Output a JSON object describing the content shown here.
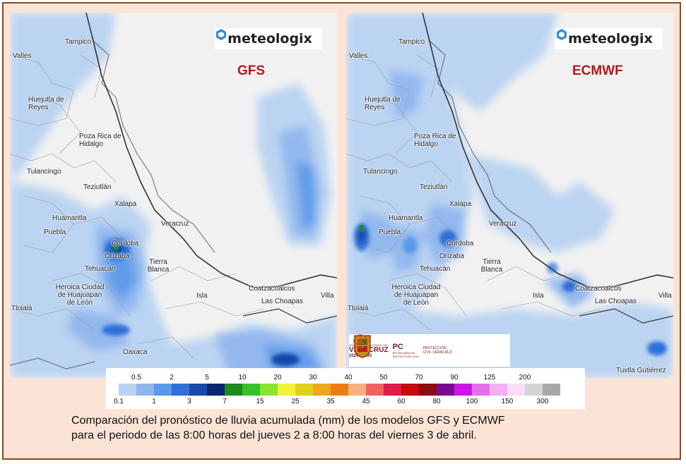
{
  "maps": [
    {
      "model": "GFS",
      "logo": "meteologix",
      "cities": [
        {
          "name": "Tampico"
        },
        {
          "name": "Valles"
        },
        {
          "name": "Huejutla de Reyes"
        },
        {
          "name": "Poza Rica de Hidalgo"
        },
        {
          "name": "Tulancingo"
        },
        {
          "name": "Teziutlán"
        },
        {
          "name": "Xalapa"
        },
        {
          "name": "Huamantla"
        },
        {
          "name": "Puebla"
        },
        {
          "name": "Veracruz"
        },
        {
          "name": "Córdoba"
        },
        {
          "name": "Orizaba"
        },
        {
          "name": "Tehuacán"
        },
        {
          "name": "Tierra Blanca"
        },
        {
          "name": "Heroica Ciudad de Huajuapan de León"
        },
        {
          "name": "Isla"
        },
        {
          "name": "Coatzacoalcos"
        },
        {
          "name": "Las Choapas"
        },
        {
          "name": "Tlolalá"
        },
        {
          "name": "Oaxaca"
        },
        {
          "name": "Villa"
        }
      ]
    },
    {
      "model": "ECMWF",
      "logo": "meteologix",
      "cities": [
        {
          "name": "Tampico"
        },
        {
          "name": "Valles"
        },
        {
          "name": "Huejutla de Reyes"
        },
        {
          "name": "Poza Rica de Hidalgo"
        },
        {
          "name": "Tulancingo"
        },
        {
          "name": "Teziutlán"
        },
        {
          "name": "Xalapa"
        },
        {
          "name": "Huamantla"
        },
        {
          "name": "Puebla"
        },
        {
          "name": "Veracruz"
        },
        {
          "name": "Córdoba"
        },
        {
          "name": "Orizaba"
        },
        {
          "name": "Tehuacán"
        },
        {
          "name": "Tierra Blanca"
        },
        {
          "name": "Heroica Ciudad de Huajuapan de León"
        },
        {
          "name": "Isla"
        },
        {
          "name": "Coatzacoalcos"
        },
        {
          "name": "Las Choapas"
        },
        {
          "name": "Tlolalá"
        },
        {
          "name": "Tuxtla Gutiérrez"
        },
        {
          "name": "Villa"
        }
      ]
    }
  ],
  "government": {
    "line1": "GOBIERNO DEL ESTADO DE",
    "state": "VERACRUZ",
    "period": "2024 - 2030",
    "pc": "PC",
    "pc_sub": "SECRETARÍA DE PROTECCIÓN CIVIL",
    "pc_right": "PROTECCIÓN CIVIL VERACRUZ"
  },
  "legend": {
    "top_ticks": [
      "0.5",
      "2",
      "5",
      "10",
      "20",
      "30",
      "40",
      "50",
      "70",
      "90",
      "125",
      "200"
    ],
    "bottom_ticks": [
      "0.1",
      "1",
      "3",
      "7",
      "15",
      "25",
      "35",
      "45",
      "60",
      "80",
      "100",
      "150",
      "300"
    ],
    "colors": [
      "#b9d3f3",
      "#8db6ee",
      "#5a98ea",
      "#2f6fd8",
      "#184aa8",
      "#0c2570",
      "#1d8a1d",
      "#35c22a",
      "#8ae32c",
      "#f2f23a",
      "#e0d21a",
      "#f1a51e",
      "#ee7c14",
      "#f4b080",
      "#f06262",
      "#e01a4a",
      "#c80a0a",
      "#8c0a14",
      "#7a0a8c",
      "#cf15e6",
      "#e470ec",
      "#f0b0f4",
      "#f8dcf8",
      "#d4d4d4",
      "#a8a8a8"
    ]
  },
  "caption": {
    "line1": "Comparación del pronóstico de lluvia acumulada (mm) de los modelos GFS y ECMWF",
    "line2": "para el periodo de las 8:00 horas del jueves 2 a 8:00 horas del viernes 3 de abril."
  }
}
